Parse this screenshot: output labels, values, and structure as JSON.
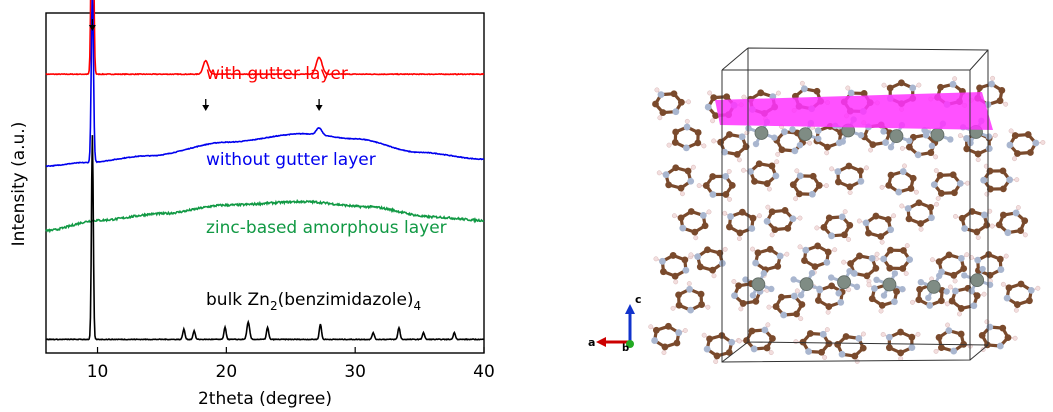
{
  "chart_data": {
    "type": "line",
    "xlabel": "2theta (degree)",
    "ylabel": "Intensity (a.u.)",
    "xlim": [
      6,
      40
    ],
    "xticks": [
      10,
      20,
      30,
      40
    ],
    "grid": false,
    "legend": "none",
    "series": [
      {
        "name": "with gutter layer",
        "color": "#ff0000",
        "offset": 0.82,
        "background": [
          [
            6,
            0
          ],
          [
            40,
            0
          ]
        ],
        "peaks": [
          [
            9.6,
            0.82,
            0.12
          ],
          [
            18.4,
            0.04,
            0.28
          ],
          [
            27.2,
            0.05,
            0.32
          ]
        ]
      },
      {
        "name": "without gutter layer",
        "color": "#0000ee",
        "offset": 0.55,
        "background": [
          [
            6,
            0.0
          ],
          [
            9,
            0.01
          ],
          [
            14,
            0.03
          ],
          [
            20,
            0.07
          ],
          [
            26,
            0.095
          ],
          [
            30,
            0.08
          ],
          [
            35,
            0.04
          ],
          [
            40,
            0.02
          ]
        ],
        "peaks": [
          [
            9.6,
            0.5,
            0.12
          ],
          [
            27.2,
            0.02,
            0.3
          ]
        ]
      },
      {
        "name": "zinc-based amorphous layer",
        "color": "#119944",
        "offset": 0.36,
        "background": [
          [
            6,
            0.0
          ],
          [
            10,
            0.03
          ],
          [
            15,
            0.05
          ],
          [
            20,
            0.075
          ],
          [
            26,
            0.085
          ],
          [
            31,
            0.07
          ],
          [
            36,
            0.04
          ],
          [
            40,
            0.03
          ]
        ],
        "peaks": []
      },
      {
        "name": "bulk Zn2(benzimidazole)4",
        "color": "#000000",
        "offset": 0.04,
        "background": [
          [
            6,
            0
          ],
          [
            40,
            0
          ]
        ],
        "peaks": [
          [
            9.6,
            0.6,
            0.1
          ],
          [
            16.7,
            0.03,
            0.12
          ],
          [
            17.5,
            0.025,
            0.12
          ],
          [
            19.9,
            0.035,
            0.12
          ],
          [
            21.7,
            0.05,
            0.15
          ],
          [
            23.2,
            0.035,
            0.12
          ],
          [
            27.3,
            0.045,
            0.12
          ],
          [
            31.4,
            0.02,
            0.12
          ],
          [
            33.4,
            0.035,
            0.12
          ],
          [
            35.3,
            0.02,
            0.12
          ],
          [
            37.7,
            0.02,
            0.12
          ]
        ]
      }
    ],
    "labels": [
      {
        "text": "with gutter layer",
        "color": "#ff0000"
      },
      {
        "text": "without gutter layer",
        "color": "#0000ee"
      },
      {
        "text": "zinc-based amorphous layer",
        "color": "#119944"
      },
      {
        "text_main": "bulk Zn",
        "sub1": "2",
        "text_mid": "(benzimidazole)",
        "sub2": "4",
        "color": "#000000"
      }
    ],
    "arrow_markers_x": [
      9.6,
      18.4,
      27.2
    ]
  },
  "structure": {
    "axis_labels": {
      "a": "a",
      "b": "b",
      "c": "c"
    },
    "colors": {
      "carbon": "#7a4a2c",
      "nitrogen": "#a9b6cf",
      "zinc": "#7f8c84",
      "hydrogen": "#f3dede",
      "plane": "#ff33ff",
      "axis_a": "#cc0000",
      "axis_b": "#22aa22",
      "axis_c": "#1133cc"
    }
  }
}
